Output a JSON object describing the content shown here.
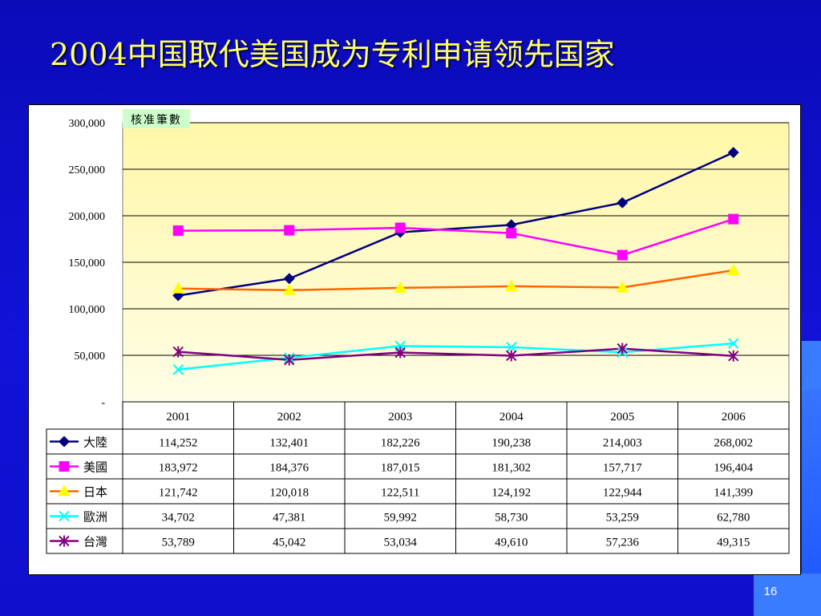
{
  "slide": {
    "title": "2004中国取代美国成为专利申请领先国家",
    "page_number": "16",
    "background_color": "#0d0dc8",
    "title_color": "#ffff66"
  },
  "chart_data": {
    "type": "line",
    "note_label": "核准筆數",
    "categories": [
      "2001",
      "2002",
      "2003",
      "2004",
      "2005",
      "2006"
    ],
    "ylim": [
      0,
      300000
    ],
    "y_ticks": [
      {
        "value": 0,
        "label": "-"
      },
      {
        "value": 50000,
        "label": "50,000"
      },
      {
        "value": 100000,
        "label": "100,000"
      },
      {
        "value": 150000,
        "label": "150,000"
      },
      {
        "value": 200000,
        "label": "200,000"
      },
      {
        "value": 250000,
        "label": "250,000"
      },
      {
        "value": 300000,
        "label": "300,000"
      }
    ],
    "grid": true,
    "legend": "data-table",
    "plot_background": "#fffbd0",
    "series": [
      {
        "name": "大陸",
        "color": "#000080",
        "marker": "diamond",
        "values": [
          114252,
          132401,
          182226,
          190238,
          214003,
          268002
        ],
        "labels": [
          "114,252",
          "132,401",
          "182,226",
          "190,238",
          "214,003",
          "268,002"
        ]
      },
      {
        "name": "美國",
        "color": "#ff00ff",
        "marker": "square",
        "values": [
          183972,
          184376,
          187015,
          181302,
          157717,
          196404
        ],
        "labels": [
          "183,972",
          "184,376",
          "187,015",
          "181,302",
          "157,717",
          "196,404"
        ]
      },
      {
        "name": "日本",
        "color": "#ff6600",
        "marker": "triangle",
        "values": [
          121742,
          120018,
          122511,
          124192,
          122944,
          141399
        ],
        "labels": [
          "121,742",
          "120,018",
          "122,511",
          "124,192",
          "122,944",
          "141,399"
        ]
      },
      {
        "name": "歐洲",
        "color": "#00ffff",
        "marker": "x",
        "values": [
          34702,
          47381,
          59992,
          58730,
          53259,
          62780
        ],
        "labels": [
          "34,702",
          "47,381",
          "59,992",
          "58,730",
          "53,259",
          "62,780"
        ]
      },
      {
        "name": "台灣",
        "color": "#800080",
        "marker": "star",
        "values": [
          53789,
          45042,
          53034,
          49610,
          57236,
          49315
        ],
        "labels": [
          "53,789",
          "45,042",
          "53,034",
          "49,610",
          "57,236",
          "49,315"
        ]
      }
    ]
  }
}
